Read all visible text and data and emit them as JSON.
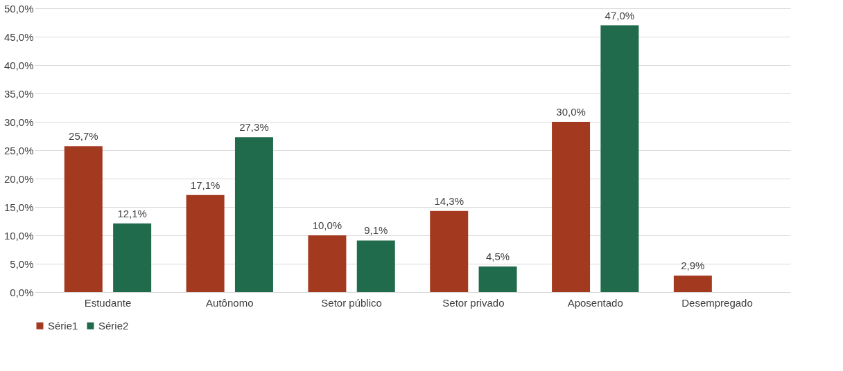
{
  "chart_data": {
    "type": "bar",
    "categories": [
      "Estudante",
      "Autônomo",
      "Setor público",
      "Setor privado",
      "Aposentado",
      "Desempregado"
    ],
    "series": [
      {
        "name": "Série1",
        "color": "#a33a20",
        "values": [
          25.7,
          17.1,
          10.0,
          14.3,
          30.0,
          2.9
        ],
        "value_labels": [
          "25,7%",
          "17,1%",
          "10,0%",
          "14,3%",
          "30,0%",
          "2,9%"
        ]
      },
      {
        "name": "Série2",
        "color": "#1f6b4b",
        "values": [
          12.1,
          27.3,
          9.1,
          4.5,
          47.0,
          null
        ],
        "value_labels": [
          "12,1%",
          "27,3%",
          "9,1%",
          "4,5%",
          "47,0%",
          null
        ]
      }
    ],
    "ylim": [
      0,
      50
    ],
    "yticks": [
      {
        "value": 0,
        "label": "0,0%"
      },
      {
        "value": 5,
        "label": "5,0%"
      },
      {
        "value": 10,
        "label": "10,0%"
      },
      {
        "value": 15,
        "label": "15,0%"
      },
      {
        "value": 20,
        "label": "20,0%"
      },
      {
        "value": 25,
        "label": "25,0%"
      },
      {
        "value": 30,
        "label": "30,0%"
      },
      {
        "value": 35,
        "label": "35,0%"
      },
      {
        "value": 40,
        "label": "40,0%"
      },
      {
        "value": 45,
        "label": "45,0%"
      },
      {
        "value": 50,
        "label": "50,0%"
      }
    ],
    "grid": "y",
    "legend": "bottom"
  }
}
